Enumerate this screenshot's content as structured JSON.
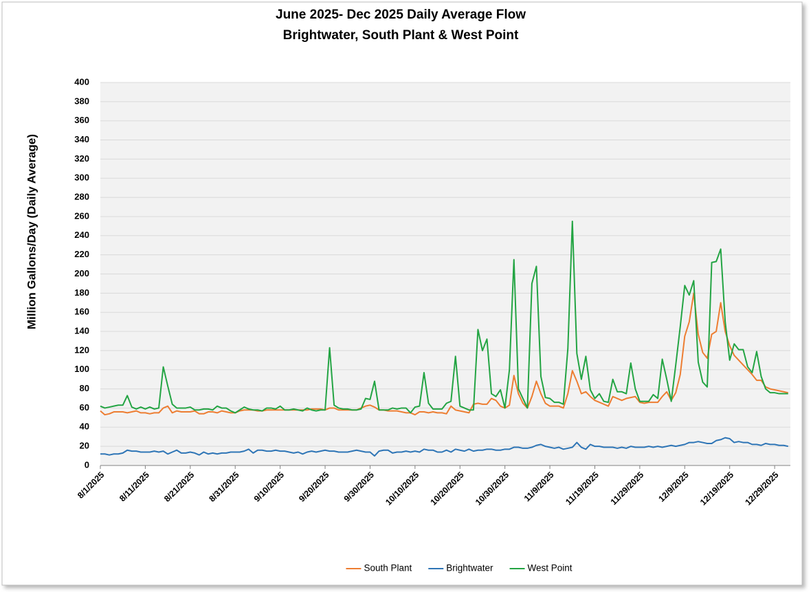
{
  "chart_data": {
    "type": "line",
    "title": "June 2025- Dec 2025 Daily Average Flow",
    "subtitle": "Brightwater, South Plant & West Point",
    "y_label": "Million Gallons/Day (Daily Average)",
    "ylim": [
      0,
      400
    ],
    "yticks": [
      0,
      20,
      40,
      60,
      80,
      100,
      120,
      140,
      160,
      180,
      200,
      220,
      240,
      260,
      280,
      300,
      320,
      340,
      360,
      380,
      400
    ],
    "grid": true,
    "legend": "bottom",
    "categories": [
      "8/1/2025",
      null,
      null,
      null,
      null,
      null,
      null,
      null,
      null,
      null,
      "8/11/2025",
      null,
      null,
      null,
      null,
      null,
      null,
      null,
      null,
      null,
      "8/21/2025",
      null,
      null,
      null,
      null,
      null,
      null,
      null,
      null,
      null,
      "8/31/2025",
      null,
      null,
      null,
      null,
      null,
      null,
      null,
      null,
      null,
      "9/10/2025",
      null,
      null,
      null,
      null,
      null,
      null,
      null,
      null,
      null,
      "9/20/2025",
      null,
      null,
      null,
      null,
      null,
      null,
      null,
      null,
      null,
      "9/30/2025",
      null,
      null,
      null,
      null,
      null,
      null,
      null,
      null,
      null,
      "10/10/2025",
      null,
      null,
      null,
      null,
      null,
      null,
      null,
      null,
      null,
      "10/20/2025",
      null,
      null,
      null,
      null,
      null,
      null,
      null,
      null,
      null,
      "10/30/2025",
      null,
      null,
      null,
      null,
      null,
      null,
      null,
      null,
      null,
      "11/9/2025",
      null,
      null,
      null,
      null,
      null,
      null,
      null,
      null,
      null,
      "11/19/2025",
      null,
      null,
      null,
      null,
      null,
      null,
      null,
      null,
      null,
      "11/29/2025",
      null,
      null,
      null,
      null,
      null,
      null,
      null,
      null,
      null,
      "12/9/2025",
      null,
      null,
      null,
      null,
      null,
      null,
      null,
      null,
      null,
      "12/19/2025",
      null,
      null,
      null,
      null,
      null,
      null,
      null,
      null,
      null,
      "12/29/2025",
      null,
      null,
      null
    ],
    "series": [
      {
        "name": "South Plant",
        "color": "#ed7d31",
        "values": [
          57,
          53,
          54,
          56,
          56,
          56,
          55,
          56,
          57,
          55,
          55,
          54,
          55,
          55,
          60,
          62,
          55,
          57,
          56,
          56,
          56,
          57,
          54,
          54,
          56,
          56,
          55,
          57,
          56,
          55,
          55,
          57,
          58,
          58,
          58,
          57,
          57,
          58,
          58,
          58,
          58,
          58,
          58,
          58,
          58,
          58,
          58,
          59,
          59,
          59,
          58,
          60,
          60,
          58,
          58,
          58,
          58,
          58,
          60,
          62,
          63,
          61,
          58,
          58,
          57,
          57,
          57,
          56,
          55,
          55,
          53,
          56,
          56,
          55,
          56,
          55,
          55,
          54,
          62,
          58,
          57,
          56,
          55,
          64,
          65,
          64,
          64,
          70,
          68,
          62,
          60,
          63,
          94,
          75,
          65,
          60,
          72,
          88,
          75,
          65,
          62,
          62,
          62,
          60,
          75,
          99,
          88,
          75,
          77,
          72,
          68,
          66,
          64,
          62,
          72,
          70,
          68,
          70,
          71,
          72,
          66,
          65,
          66,
          66,
          66,
          72,
          77,
          68,
          76,
          95,
          135,
          150,
          180,
          137,
          118,
          112,
          137,
          140,
          170,
          140,
          125,
          115,
          110,
          105,
          100,
          95,
          89,
          89,
          82,
          80,
          79,
          78,
          77,
          76
        ]
      },
      {
        "name": "Brightwater",
        "color": "#2e75b6",
        "values": [
          12,
          12,
          11,
          12,
          12,
          13,
          16,
          15,
          15,
          14,
          14,
          14,
          15,
          14,
          15,
          12,
          14,
          16,
          13,
          13,
          14,
          13,
          11,
          14,
          12,
          13,
          12,
          13,
          13,
          14,
          14,
          14,
          15,
          17,
          13,
          16,
          16,
          15,
          15,
          16,
          15,
          15,
          14,
          13,
          14,
          12,
          14,
          15,
          14,
          15,
          16,
          15,
          15,
          14,
          14,
          14,
          15,
          16,
          15,
          14,
          14,
          10,
          15,
          16,
          16,
          13,
          14,
          14,
          15,
          14,
          15,
          14,
          17,
          16,
          16,
          14,
          14,
          16,
          14,
          17,
          16,
          15,
          17,
          15,
          16,
          16,
          17,
          17,
          16,
          16,
          17,
          17,
          19,
          19,
          18,
          18,
          19,
          21,
          22,
          20,
          19,
          18,
          19,
          17,
          18,
          19,
          24,
          19,
          17,
          22,
          20,
          20,
          19,
          19,
          19,
          18,
          19,
          18,
          20,
          19,
          19,
          19,
          20,
          19,
          20,
          19,
          20,
          21,
          20,
          21,
          22,
          24,
          24,
          25,
          24,
          23,
          23,
          26,
          27,
          29,
          28,
          24,
          25,
          24,
          24,
          22,
          22,
          21,
          23,
          22,
          22,
          21,
          21,
          20
        ]
      },
      {
        "name": "West Point",
        "color": "#23a443",
        "values": [
          62,
          60,
          61,
          62,
          63,
          63,
          73,
          61,
          59,
          61,
          59,
          61,
          59,
          60,
          103,
          83,
          64,
          60,
          60,
          60,
          61,
          58,
          58,
          59,
          59,
          58,
          62,
          60,
          60,
          57,
          55,
          58,
          61,
          59,
          58,
          58,
          57,
          60,
          60,
          59,
          62,
          58,
          58,
          59,
          58,
          57,
          60,
          58,
          57,
          58,
          58,
          123,
          63,
          60,
          59,
          59,
          58,
          58,
          59,
          70,
          69,
          88,
          58,
          58,
          58,
          60,
          59,
          60,
          60,
          55,
          61,
          62,
          97,
          65,
          59,
          59,
          59,
          65,
          67,
          114,
          62,
          60,
          58,
          58,
          142,
          120,
          132,
          75,
          72,
          79,
          60,
          100,
          215,
          80,
          70,
          60,
          190,
          208,
          93,
          71,
          70,
          66,
          66,
          64,
          122,
          255,
          117,
          90,
          114,
          79,
          70,
          75,
          67,
          66,
          90,
          77,
          77,
          75,
          107,
          80,
          67,
          67,
          67,
          74,
          70,
          111,
          90,
          67,
          105,
          145,
          188,
          178,
          193,
          108,
          87,
          82,
          212,
          213,
          226,
          150,
          110,
          127,
          121,
          121,
          103,
          97,
          119,
          93,
          80,
          76,
          76,
          75,
          75,
          75
        ]
      }
    ]
  }
}
